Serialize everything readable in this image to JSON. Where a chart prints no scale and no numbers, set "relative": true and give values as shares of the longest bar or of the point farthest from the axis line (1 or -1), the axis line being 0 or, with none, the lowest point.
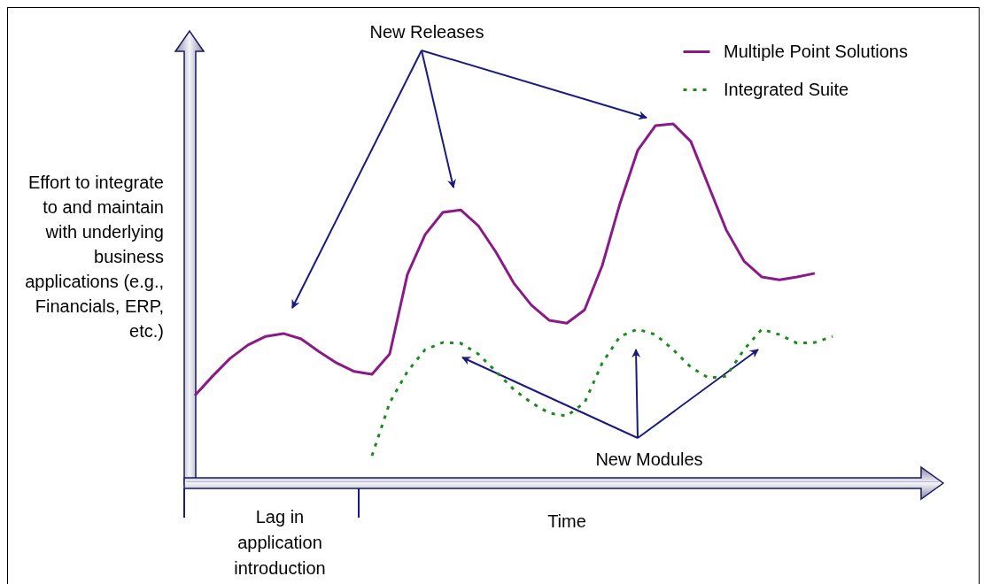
{
  "chart_data": {
    "type": "line",
    "relative": true,
    "xlabel": "Time",
    "ylabel": "Effort to integrate to and maintain with underlying business applications (e.g., Financials, ERP, etc.)",
    "legend": "top right",
    "marker": "none",
    "annotations": [
      "New Releases",
      "New Modules",
      "Lag in application introduction"
    ],
    "categories": [
      null,
      null,
      null,
      null,
      null,
      null,
      null,
      null,
      null,
      null,
      null,
      null,
      null,
      null,
      null,
      null,
      null,
      null,
      null,
      null,
      null,
      null,
      null,
      null,
      null,
      null,
      null,
      null,
      null,
      null,
      null,
      null,
      null,
      null,
      null,
      null,
      null
    ],
    "series": [
      {
        "name": "Multiple Point Solutions",
        "color": "#8b1a89",
        "line_style": "solid",
        "values": [
          0.242,
          0.296,
          0.346,
          0.383,
          0.407,
          0.415,
          0.4,
          0.365,
          0.333,
          0.309,
          0.301,
          0.358,
          0.58,
          0.691,
          0.753,
          0.76,
          0.716,
          0.642,
          0.556,
          0.494,
          0.452,
          0.444,
          0.481,
          0.605,
          0.778,
          0.926,
          0.995,
          1,
          0.951,
          0.827,
          0.704,
          0.617,
          0.573,
          0.565,
          0.573,
          0.583,
          null
        ]
      },
      {
        "name": "Integrated Suite",
        "color": "#1a8c1a",
        "line_style": "dotted",
        "values": [
          null,
          null,
          null,
          null,
          null,
          null,
          null,
          null,
          null,
          null,
          0.074,
          0.222,
          0.309,
          0.37,
          0.39,
          0.388,
          0.358,
          0.309,
          0.259,
          0.222,
          0.193,
          0.185,
          0.222,
          0.333,
          0.407,
          0.427,
          0.412,
          0.37,
          0.321,
          0.291,
          0.296,
          0.37,
          0.427,
          0.412,
          0.388,
          0.39,
          0.407
        ]
      }
    ]
  }
}
